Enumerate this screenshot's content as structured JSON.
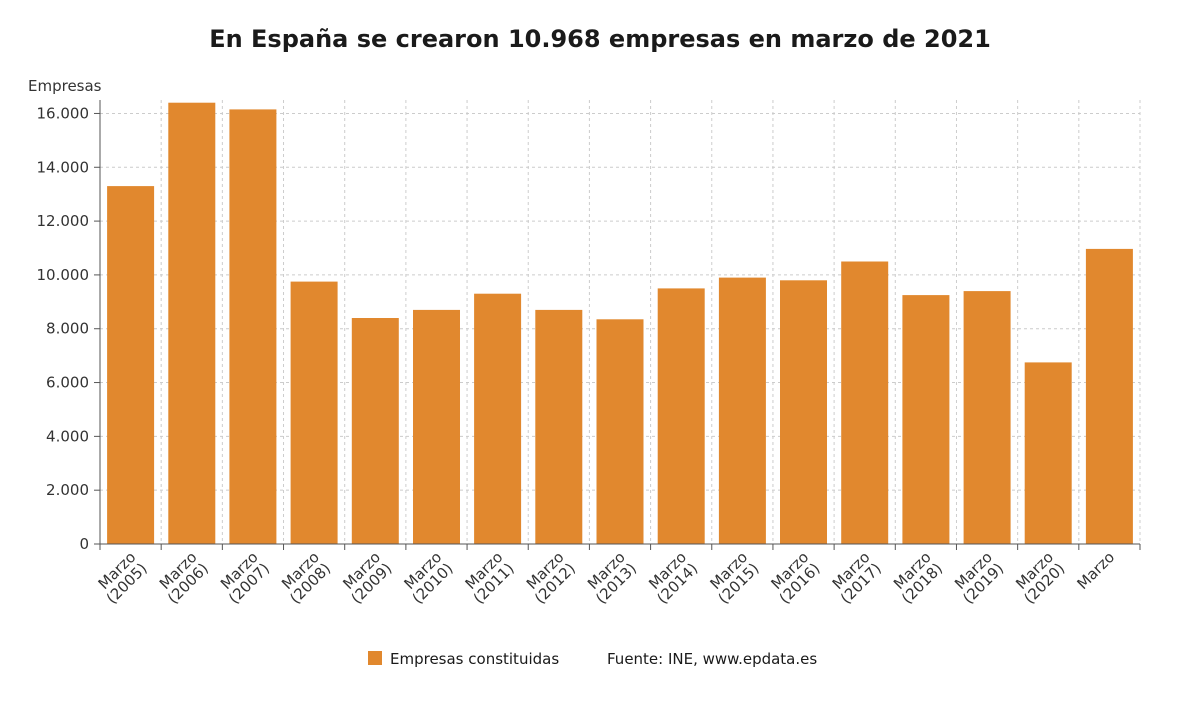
{
  "title": "En España se crearon 10.968 empresas en marzo de 2021",
  "y_axis_title": "Empresas",
  "legend": {
    "label": "Empresas constituidas",
    "source": "Fuente: INE, www.epdata.es"
  },
  "colors": {
    "bar": "#E1882E",
    "grid": "#cccccc",
    "axis": "#555555",
    "text": "#333333",
    "title": "#1a1a1a"
  },
  "chart_data": {
    "type": "bar",
    "title": "En España se crearon 10.968 empresas en marzo de 2021",
    "xlabel": "",
    "ylabel": "Empresas",
    "categories": [
      "Marzo (2005)",
      "Marzo (2006)",
      "Marzo (2007)",
      "Marzo (2008)",
      "Marzo (2009)",
      "Marzo (2010)",
      "Marzo (2011)",
      "Marzo (2012)",
      "Marzo (2013)",
      "Marzo (2014)",
      "Marzo (2015)",
      "Marzo (2016)",
      "Marzo (2017)",
      "Marzo (2018)",
      "Marzo (2019)",
      "Marzo (2020)",
      "Marzo"
    ],
    "values": [
      13300,
      16400,
      16150,
      9750,
      8400,
      8700,
      9300,
      8700,
      8350,
      9500,
      9900,
      9800,
      10500,
      9250,
      9400,
      6750,
      10968
    ],
    "series_name": "Empresas constituidas",
    "ylim": [
      0,
      16500
    ],
    "yticks": [
      0,
      2000,
      4000,
      6000,
      8000,
      10000,
      12000,
      14000,
      16000
    ],
    "ytick_labels": [
      "0",
      "2.000",
      "4.000",
      "6.000",
      "8.000",
      "10.000",
      "12.000",
      "14.000",
      "16.000"
    ],
    "grid": true,
    "legend_position": "bottom"
  }
}
